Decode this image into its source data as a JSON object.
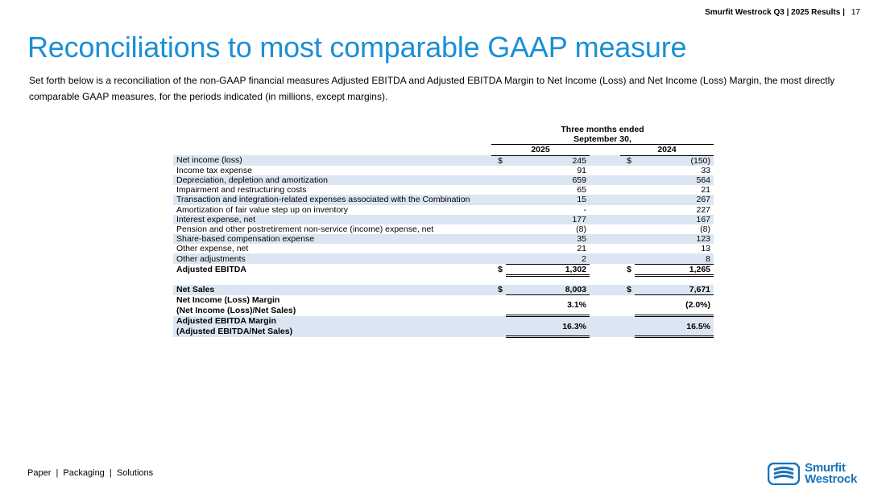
{
  "header": {
    "label": "Smurfit Westrock Q3 | 2025 Results |",
    "page": "17"
  },
  "title": "Reconciliations to most comparable GAAP measure",
  "intro": "Set forth below is a reconciliation of the non-GAAP financial measures Adjusted EBITDA and Adjusted EBITDA Margin to Net Income (Loss) and Net Income (Loss) Margin, the most directly comparable GAAP measures, for the periods indicated (in millions, except margins).",
  "table": {
    "period_line1": "Three months ended",
    "period_line2": "September 30,",
    "col1": "2025",
    "col2": "2024",
    "rows": [
      {
        "label": "Net income (loss)",
        "d1": "$",
        "v1": "245",
        "d2": "$",
        "v2": "(150)"
      },
      {
        "label": "Income tax expense",
        "d1": "",
        "v1": "91",
        "d2": "",
        "v2": "33"
      },
      {
        "label": "Depreciation, depletion and amortization",
        "d1": "",
        "v1": "659",
        "d2": "",
        "v2": "564"
      },
      {
        "label": "Impairment and restructuring costs",
        "d1": "",
        "v1": "65",
        "d2": "",
        "v2": "21"
      },
      {
        "label": "Transaction and integration-related expenses associated with the Combination",
        "d1": "",
        "v1": "15",
        "d2": "",
        "v2": "267"
      },
      {
        "label": "Amortization of fair value step up on inventory",
        "d1": "",
        "v1": "-",
        "d2": "",
        "v2": "227"
      },
      {
        "label": "Interest expense, net",
        "d1": "",
        "v1": "177",
        "d2": "",
        "v2": "167"
      },
      {
        "label": "Pension and other postretirement non-service (income) expense, net",
        "d1": "",
        "v1": "(8)",
        "d2": "",
        "v2": "(8)"
      },
      {
        "label": "Share-based compensation expense",
        "d1": "",
        "v1": "35",
        "d2": "",
        "v2": "123"
      },
      {
        "label": "Other expense, net",
        "d1": "",
        "v1": "21",
        "d2": "",
        "v2": "13"
      },
      {
        "label": "Other adjustments",
        "d1": "",
        "v1": "2",
        "d2": "",
        "v2": "8"
      }
    ],
    "adj_ebitda": {
      "label": "Adjusted EBITDA",
      "d1": "$",
      "v1": "1,302",
      "d2": "$",
      "v2": "1,265"
    },
    "net_sales": {
      "label": "Net Sales",
      "d1": "$",
      "v1": "8,003",
      "d2": "$",
      "v2": "7,671"
    },
    "ni_margin": {
      "line1": "Net Income (Loss) Margin",
      "line2": "(Net Income (Loss)/Net Sales)",
      "v1": "3.1%",
      "v2": "(2.0%)"
    },
    "ebitda_margin": {
      "line1": "Adjusted EBITDA Margin",
      "line2": "(Adjusted EBITDA/Net Sales)",
      "v1": "16.3%",
      "v2": "16.5%"
    }
  },
  "footer": "Paper  |  Packaging  |  Solutions",
  "logo": {
    "line1": "Smurfit",
    "line2": "Westrock"
  },
  "colors": {
    "accent": "#1a8fd6",
    "shade": "#dce6f2",
    "logo": "#1a73b8"
  }
}
